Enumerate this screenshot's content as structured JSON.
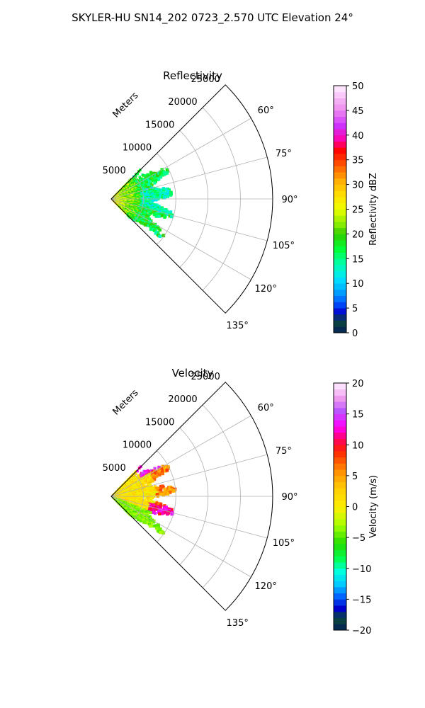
{
  "suptitle": "SKYLER-HU  SN14_202  0723_2.570 UTC Elevation 24°",
  "chart_data": [
    {
      "type": "heatmap",
      "projection": "polar-sector",
      "title": "Reflectivity",
      "range_axis_label": "Meters",
      "range_ticks": [
        5000,
        10000,
        15000,
        20000,
        25000
      ],
      "range_tick_labels": [
        "5000",
        "10000",
        "15000",
        "20000",
        "25000"
      ],
      "range_max": 25000,
      "angle_range_deg": [
        45,
        135
      ],
      "angle_ticks_deg": [
        60,
        75,
        90,
        105,
        120,
        135
      ],
      "angle_tick_labels": [
        "60°",
        "75°",
        "90°",
        "105°",
        "120°",
        "135°"
      ],
      "grid": true,
      "data_extent_m": 10000,
      "colorbar": {
        "label": "Reflectivity dBZ",
        "min": 0,
        "max": 50,
        "ticks": [
          0,
          5,
          10,
          15,
          20,
          25,
          30,
          35,
          40,
          45,
          50
        ],
        "tick_labels": [
          "0",
          "5",
          "10",
          "15",
          "20",
          "25",
          "30",
          "35",
          "40",
          "45",
          "50"
        ],
        "stops": [
          {
            "v": 0,
            "c": "#05205a"
          },
          {
            "v": 2.5,
            "c": "#0a4a3a"
          },
          {
            "v": 4,
            "c": "#0000cc"
          },
          {
            "v": 6,
            "c": "#0055ff"
          },
          {
            "v": 8.5,
            "c": "#00aaff"
          },
          {
            "v": 11,
            "c": "#00e5ff"
          },
          {
            "v": 14,
            "c": "#00ffaa"
          },
          {
            "v": 17,
            "c": "#00ff33"
          },
          {
            "v": 20,
            "c": "#33cc00"
          },
          {
            "v": 22,
            "c": "#88ee00"
          },
          {
            "v": 25,
            "c": "#eeff00"
          },
          {
            "v": 28,
            "c": "#ffdd00"
          },
          {
            "v": 31,
            "c": "#ffaa00"
          },
          {
            "v": 34,
            "c": "#ff5500"
          },
          {
            "v": 37,
            "c": "#ff0000"
          },
          {
            "v": 39,
            "c": "#ff00aa"
          },
          {
            "v": 42,
            "c": "#cc33ff"
          },
          {
            "v": 45,
            "c": "#ee88ee"
          },
          {
            "v": 50,
            "c": "#fff0ff"
          }
        ]
      }
    },
    {
      "type": "heatmap",
      "projection": "polar-sector",
      "title": "Velocity",
      "range_axis_label": "Meters",
      "range_ticks": [
        5000,
        10000,
        15000,
        20000,
        25000
      ],
      "range_tick_labels": [
        "5000",
        "10000",
        "15000",
        "20000",
        "25000"
      ],
      "range_max": 25000,
      "angle_range_deg": [
        45,
        135
      ],
      "angle_ticks_deg": [
        60,
        75,
        90,
        105,
        120,
        135
      ],
      "angle_tick_labels": [
        "60°",
        "75°",
        "90°",
        "105°",
        "120°",
        "135°"
      ],
      "grid": true,
      "data_extent_m": 10000,
      "colorbar": {
        "label": "Velocity (m/s)",
        "min": -20,
        "max": 20,
        "ticks": [
          -20,
          -15,
          -10,
          -5,
          0,
          5,
          10,
          15,
          20
        ],
        "tick_labels": [
          "−20",
          "−15",
          "−10",
          "−5",
          "0",
          "5",
          "10",
          "15",
          "20"
        ],
        "stops": [
          {
            "v": -20,
            "c": "#05205a"
          },
          {
            "v": -18,
            "c": "#0a4a3a"
          },
          {
            "v": -16.5,
            "c": "#0000cc"
          },
          {
            "v": -14.5,
            "c": "#0066ff"
          },
          {
            "v": -12.5,
            "c": "#00ccff"
          },
          {
            "v": -10.5,
            "c": "#00ffdd"
          },
          {
            "v": -8.5,
            "c": "#00ff55"
          },
          {
            "v": -6,
            "c": "#22dd00"
          },
          {
            "v": -3,
            "c": "#aaff00"
          },
          {
            "v": 0,
            "c": "#ffee00"
          },
          {
            "v": 3,
            "c": "#ffcc00"
          },
          {
            "v": 6,
            "c": "#ff8800"
          },
          {
            "v": 9,
            "c": "#ff2200"
          },
          {
            "v": 11,
            "c": "#ff0066"
          },
          {
            "v": 13,
            "c": "#ff00ff"
          },
          {
            "v": 15.5,
            "c": "#bb55ff"
          },
          {
            "v": 17.5,
            "c": "#ee99ee"
          },
          {
            "v": 20,
            "c": "#fff0ff"
          }
        ]
      }
    }
  ]
}
